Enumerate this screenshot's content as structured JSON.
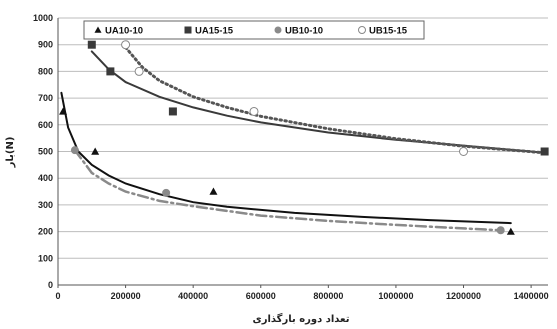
{
  "chart_data": {
    "type": "scatter",
    "xlabel": "تعداد دوره بارگذاری",
    "ylabel": "بار(N)",
    "xlim": [
      0,
      1450000
    ],
    "ylim": [
      0,
      1000
    ],
    "x_ticks": [
      "0",
      "200000",
      "400000",
      "600000",
      "800000",
      "1000000",
      "1200000",
      "1400000"
    ],
    "y_ticks": [
      "0",
      "100",
      "200",
      "300",
      "400",
      "500",
      "600",
      "700",
      "800",
      "900",
      "1000"
    ],
    "grid": "horizontal",
    "legend_position": "top-center",
    "series": [
      {
        "name": "UA10-10",
        "marker": "triangle",
        "color": "#111111",
        "points": [
          [
            15000,
            650
          ],
          [
            110000,
            500
          ],
          [
            460000,
            350
          ],
          [
            1340000,
            200
          ]
        ],
        "trend": [
          [
            10000,
            720
          ],
          [
            30000,
            590
          ],
          [
            60000,
            500
          ],
          [
            100000,
            450
          ],
          [
            150000,
            410
          ],
          [
            200000,
            380
          ],
          [
            300000,
            340
          ],
          [
            400000,
            310
          ],
          [
            500000,
            293
          ],
          [
            700000,
            270
          ],
          [
            900000,
            255
          ],
          [
            1100000,
            243
          ],
          [
            1340000,
            232
          ]
        ],
        "trend_style": "solid"
      },
      {
        "name": "UA15-15",
        "marker": "square",
        "color": "#3a3a3a",
        "points": [
          [
            100000,
            900
          ],
          [
            155000,
            800
          ],
          [
            340000,
            650
          ],
          [
            1440000,
            500
          ]
        ],
        "trend": [
          [
            100000,
            875
          ],
          [
            150000,
            808
          ],
          [
            200000,
            760
          ],
          [
            300000,
            705
          ],
          [
            400000,
            665
          ],
          [
            500000,
            634
          ],
          [
            600000,
            609
          ],
          [
            800000,
            571
          ],
          [
            1000000,
            544
          ],
          [
            1200000,
            522
          ],
          [
            1440000,
            495
          ]
        ],
        "trend_style": "solid"
      },
      {
        "name": "UB10-10",
        "marker": "circle",
        "color": "#8a8a8a",
        "points": [
          [
            50000,
            505
          ],
          [
            320000,
            345
          ],
          [
            1310000,
            205
          ]
        ],
        "trend": [
          [
            50000,
            505
          ],
          [
            100000,
            420
          ],
          [
            150000,
            380
          ],
          [
            200000,
            350
          ],
          [
            300000,
            315
          ],
          [
            400000,
            295
          ],
          [
            600000,
            260
          ],
          [
            800000,
            240
          ],
          [
            1000000,
            225
          ],
          [
            1200000,
            212
          ],
          [
            1310000,
            205
          ]
        ],
        "trend_style": "dash-dot"
      },
      {
        "name": "UB15-15",
        "marker": "open-circle",
        "color": "#555555",
        "points": [
          [
            200000,
            900
          ],
          [
            240000,
            800
          ],
          [
            580000,
            650
          ],
          [
            1200000,
            500
          ]
        ],
        "trend": [
          [
            200000,
            890
          ],
          [
            250000,
            815
          ],
          [
            300000,
            765
          ],
          [
            400000,
            705
          ],
          [
            500000,
            665
          ],
          [
            600000,
            632
          ],
          [
            800000,
            585
          ],
          [
            1000000,
            548
          ],
          [
            1200000,
            520
          ],
          [
            1440000,
            495
          ]
        ],
        "trend_style": "dotted"
      }
    ]
  }
}
